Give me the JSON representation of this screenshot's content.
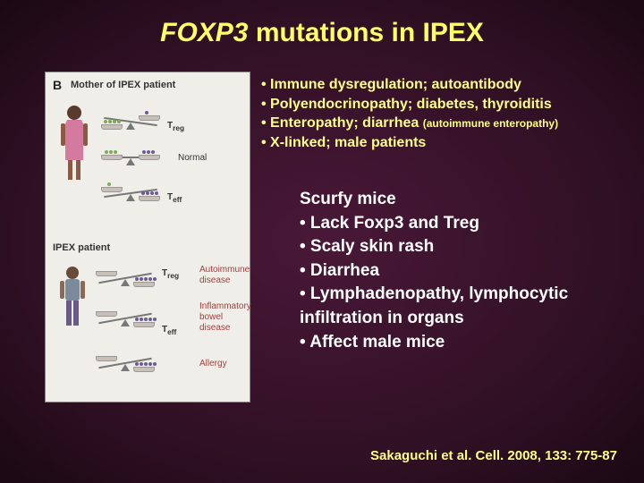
{
  "title": {
    "italic": "FOXP3",
    "rest": " mutations in IPEX"
  },
  "figure": {
    "panel_label": "B",
    "mother_label": "Mother of IPEX patient",
    "patient_label": "IPEX patient",
    "normal_label": "Normal",
    "treg": "T",
    "treg_sub": "reg",
    "teff": "T",
    "teff_sub": "eff",
    "disease1": "Autoimmune\ndisease",
    "disease2": "Inflammatory\nbowel\ndisease",
    "disease3": "Allergy",
    "colors": {
      "green": "#7fa858",
      "purple": "#6b5b95",
      "person_pink": "#d47a9e",
      "person_gray": "#7a8a9a"
    }
  },
  "ipex_bullets": [
    {
      "main": "Immune dysregulation; autoantibody",
      "suffix": ""
    },
    {
      "main": "Polyendocrinopathy; diabetes, thyroiditis",
      "suffix": ""
    },
    {
      "main": "Enteropathy; diarrhea ",
      "suffix": "(autoimmune enteropathy)"
    },
    {
      "main": "X-linked; male patients",
      "suffix": ""
    }
  ],
  "scurfy": {
    "heading": "Scurfy mice",
    "bullets": [
      "Lack Foxp3 and Treg",
      "Scaly skin rash",
      "Diarrhea",
      "Lymphadenopathy, lymphocytic infiltration in organs",
      "Affect male mice"
    ]
  },
  "citation": "Sakaguchi et al. Cell. 2008, 133: 775-87"
}
